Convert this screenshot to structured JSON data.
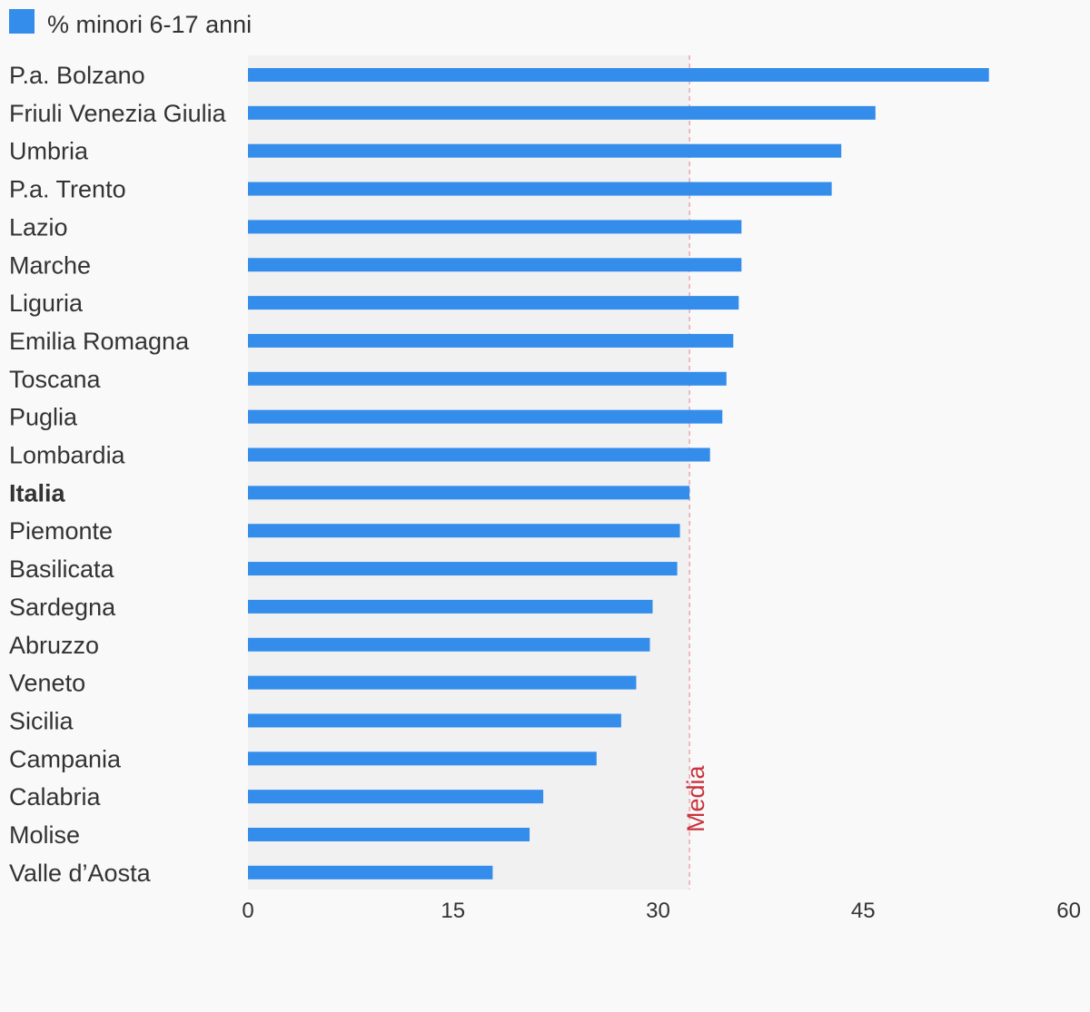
{
  "colors": {
    "background": "#f9f9f9",
    "plot_shade": "#f1f1f1",
    "bar": "#348deb",
    "text": "#333333",
    "reference_line": "#e8a7b0",
    "reference_label": "#c8343e"
  },
  "legend": {
    "label": "% minori 6-17 anni",
    "swatch_color": "#348deb"
  },
  "chart_data": {
    "type": "bar",
    "orientation": "horizontal",
    "title": "",
    "xlabel": "",
    "ylabel": "",
    "xlim": [
      0,
      60
    ],
    "x_ticks": [
      "0",
      "15",
      "30",
      "45",
      "60"
    ],
    "categories": [
      "P.a. Bolzano",
      "Friuli Venezia Giulia",
      "Umbria",
      "P.a. Trento",
      "Lazio",
      "Marche",
      "Liguria",
      "Emilia Romagna",
      "Toscana",
      "Puglia",
      "Lombardia",
      "Italia",
      "Piemonte",
      "Basilicata",
      "Sardegna",
      "Abruzzo",
      "Veneto",
      "Sicilia",
      "Campania",
      "Calabria",
      "Molise",
      "Valle d’Aosta"
    ],
    "bold_categories": [
      "Italia"
    ],
    "series": [
      {
        "name": "% minori 6-17 anni",
        "values": [
          54.2,
          45.9,
          43.4,
          42.7,
          36.1,
          36.1,
          35.9,
          35.5,
          35.0,
          34.7,
          33.8,
          32.3,
          31.6,
          31.4,
          29.6,
          29.4,
          28.4,
          27.3,
          25.5,
          21.6,
          20.6,
          17.9
        ]
      }
    ],
    "reference_line": {
      "label": "Media",
      "value": 32.3
    },
    "grid": false,
    "legend_position": "top-left"
  }
}
